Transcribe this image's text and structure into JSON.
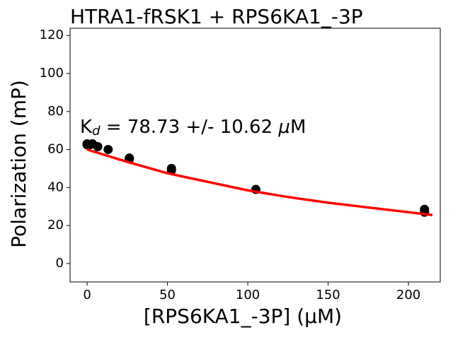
{
  "chart_data": {
    "type": "scatter",
    "title": "HTRA1-fRSK1 + RPS6KA1_-3P",
    "xlabel": "[RPS6KA1_-3P] (μM)",
    "ylabel": "Polarization (mP)",
    "annotation": [
      "K",
      "d",
      " = 78.73 +/- 10.62 ",
      "μ",
      "M"
    ],
    "xlim": [
      -10.6,
      219.8
    ],
    "ylim": [
      -9.7,
      123.8
    ],
    "xticks": [
      0,
      50,
      100,
      150,
      200
    ],
    "yticks": [
      0,
      20,
      40,
      60,
      80,
      100,
      120
    ],
    "series": [
      {
        "type": "scatter",
        "color": "#000000",
        "x": [
          0,
          0,
          1.6,
          3.3,
          6.6,
          13.1,
          26.3,
          26.3,
          52.5,
          52.5,
          105,
          210,
          210
        ],
        "values": [
          63,
          62.5,
          62.5,
          63,
          61.5,
          60,
          55,
          55.5,
          50,
          49,
          39,
          28.5,
          27
        ]
      },
      {
        "type": "line",
        "color": "#ff0000",
        "x": [
          0,
          25,
          50,
          75,
          100,
          125,
          150,
          175,
          200,
          215
        ],
        "values": [
          60,
          53.5,
          47.5,
          43,
          38.5,
          35,
          32,
          29.5,
          27,
          25.5
        ]
      }
    ]
  }
}
